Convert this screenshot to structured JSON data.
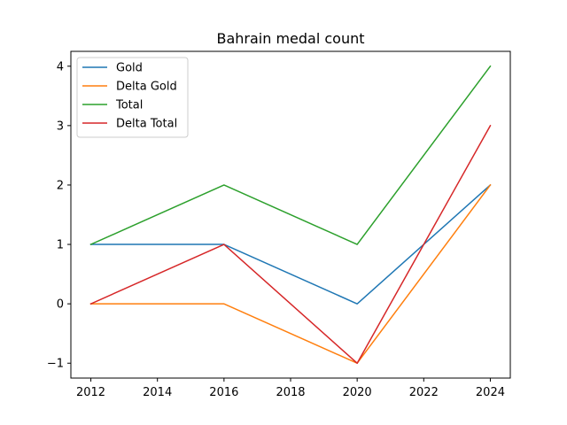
{
  "chart_data": {
    "type": "line",
    "title": "Bahrain medal count",
    "xlabel": "",
    "ylabel": "",
    "x": [
      2012,
      2016,
      2020,
      2024
    ],
    "series": [
      {
        "name": "Gold",
        "values": [
          1,
          1,
          0,
          2
        ],
        "color": "#1f77b4"
      },
      {
        "name": "Delta Gold",
        "values": [
          0,
          0,
          -1,
          2
        ],
        "color": "#ff7f0e"
      },
      {
        "name": "Total",
        "values": [
          1,
          2,
          1,
          4
        ],
        "color": "#2ca02c"
      },
      {
        "name": "Delta Total",
        "values": [
          0,
          1,
          -1,
          3
        ],
        "color": "#d62728"
      }
    ],
    "xlim": [
      2011.4,
      2024.6
    ],
    "ylim": [
      -1.25,
      4.25
    ],
    "xticks": [
      2012,
      2014,
      2016,
      2018,
      2020,
      2022,
      2024
    ],
    "yticks": [
      -1,
      0,
      1,
      2,
      3,
      4
    ],
    "ytick_labels": [
      "−1",
      "0",
      "1",
      "2",
      "3",
      "4"
    ],
    "grid": false,
    "legend_position": "upper left"
  }
}
